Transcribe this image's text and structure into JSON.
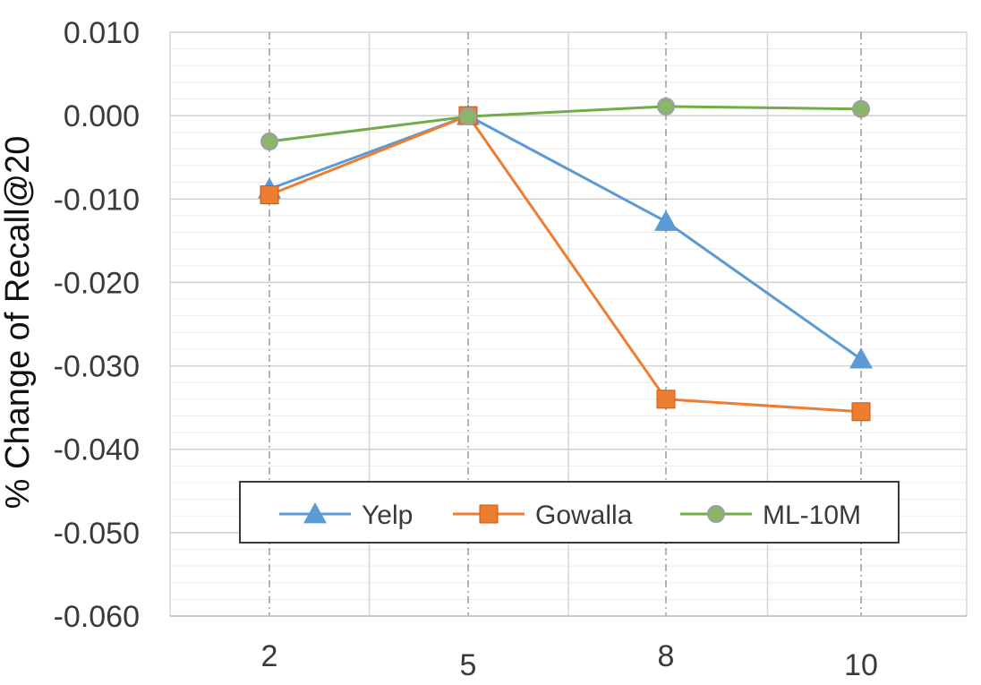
{
  "chart_data": {
    "type": "line",
    "x": [
      2,
      5,
      8,
      10
    ],
    "x_tick_labels": [
      "2",
      "5",
      "8",
      "10"
    ],
    "ylabel": "% Change of Recall@20",
    "ylim": [
      -0.06,
      0.01
    ],
    "y_tick_labels": [
      "0.010",
      "0.000",
      "-0.010",
      "-0.020",
      "-0.030",
      "-0.040",
      "-0.050",
      "-0.060"
    ],
    "grid": true,
    "legend_position": "lower-center",
    "series": [
      {
        "name": "Yelp",
        "values": [
          -0.0088,
          0.0,
          -0.0127,
          -0.0292
        ],
        "color": "#5b9bd5",
        "marker": "triangle"
      },
      {
        "name": "Gowalla",
        "values": [
          -0.0095,
          0.0,
          -0.034,
          -0.0355
        ],
        "color": "#ed7d31",
        "marker": "square"
      },
      {
        "name": "ML-10M",
        "values": [
          -0.0031,
          -0.0001,
          0.0011,
          0.0008
        ],
        "color": "#70ad47",
        "marker": "circle"
      }
    ]
  }
}
